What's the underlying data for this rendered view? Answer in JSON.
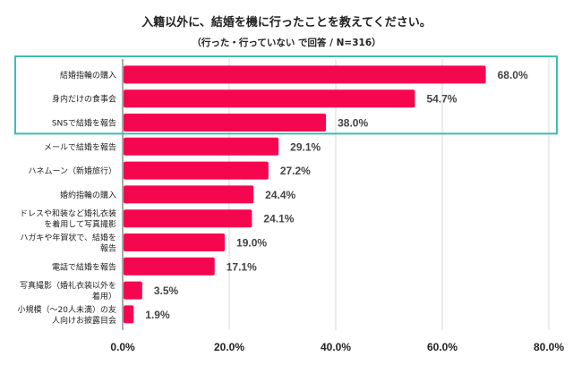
{
  "chart_data": {
    "type": "bar",
    "orientation": "horizontal",
    "title": "入籍以外に、結婚を機に行ったことを教えてください。",
    "subtitle": "（行った・行っていない で回答 / N=316）",
    "categories": [
      [
        "結婚指輪の購入"
      ],
      [
        "身内だけの食事会"
      ],
      [
        "SNSで結婚を報告"
      ],
      [
        "メールで結婚を報告"
      ],
      [
        "ハネムーン（新婚旅行）"
      ],
      [
        "婚約指輪の購入"
      ],
      [
        "ドレスや和装など婚礼衣装",
        "を着用して写真撮影"
      ],
      [
        "ハガキや年賀状で、結婚を",
        "報告"
      ],
      [
        "電話で結婚を報告"
      ],
      [
        "写真撮影（婚礼衣装以外を",
        "着用）"
      ],
      [
        "小規模（～20人未満）の友",
        "人向けお披露目会"
      ]
    ],
    "values": [
      68.0,
      54.7,
      38.0,
      29.1,
      27.2,
      24.4,
      24.1,
      19.0,
      17.1,
      3.5,
      1.9
    ],
    "data_labels": [
      "68.0%",
      "54.7%",
      "38.0%",
      "29.1%",
      "27.2%",
      "24.4%",
      "24.1%",
      "19.0%",
      "17.1%",
      "3.5%",
      "1.9%"
    ],
    "xlim": [
      0,
      80
    ],
    "xticks": [
      0,
      20,
      40,
      60,
      80
    ],
    "xtick_labels": [
      "0.0%",
      "20.0%",
      "40.0%",
      "60.0%",
      "80.0%"
    ],
    "grid": true,
    "highlighted_top_n": 3,
    "colors": {
      "bar": "#f5074f",
      "highlight_box": "#3cbfae",
      "grid": "#d9d9d9"
    }
  }
}
